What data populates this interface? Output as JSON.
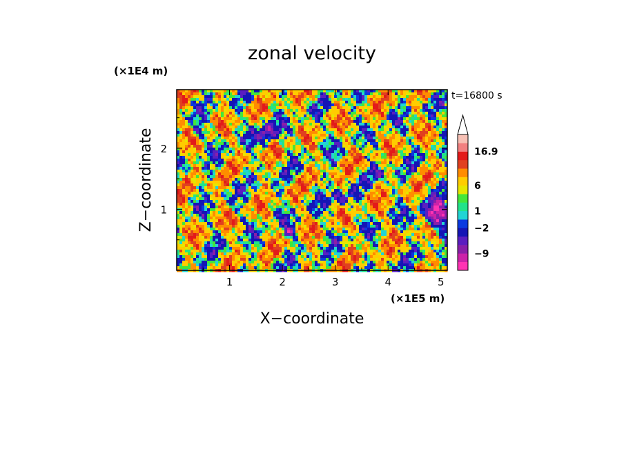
{
  "chart_data": {
    "type": "heatmap",
    "title": "zonal velocity",
    "xlabel": "X−coordinate",
    "ylabel": "Z−coordinate",
    "x_scale_label": "(×1E5 m)",
    "y_scale_label": "(×1E4 m)",
    "time_label": "t=16800 s",
    "xlim": [
      0,
      5.12
    ],
    "ylim": [
      0,
      2.96
    ],
    "x_ticks": [
      1,
      2,
      3,
      4,
      5
    ],
    "x_tick_labels": [
      "1",
      "2",
      "3",
      "4",
      "5"
    ],
    "y_ticks": [
      1,
      2
    ],
    "y_tick_labels": [
      "1",
      "2"
    ],
    "colorbar": {
      "labeled_levels": [
        "16.9",
        "6",
        "1",
        "−2",
        "−9"
      ],
      "levels": [
        -16,
        -13,
        -9,
        -6,
        -2,
        -1,
        0,
        1,
        2,
        3,
        6,
        9,
        12,
        16.9
      ],
      "colors": [
        "#ff33b3",
        "#cc22a8",
        "#8a1fa8",
        "#5b1ec0",
        "#1515b5",
        "#0a3ae0",
        "#22d4d4",
        "#22e38a",
        "#44e63a",
        "#e6e600",
        "#ffcc00",
        "#ff8c00",
        "#e04020",
        "#e31a1a",
        "#f28080",
        "#f7c0b4"
      ],
      "extend": "max"
    },
    "field_range": [
      -16,
      16.9
    ]
  }
}
